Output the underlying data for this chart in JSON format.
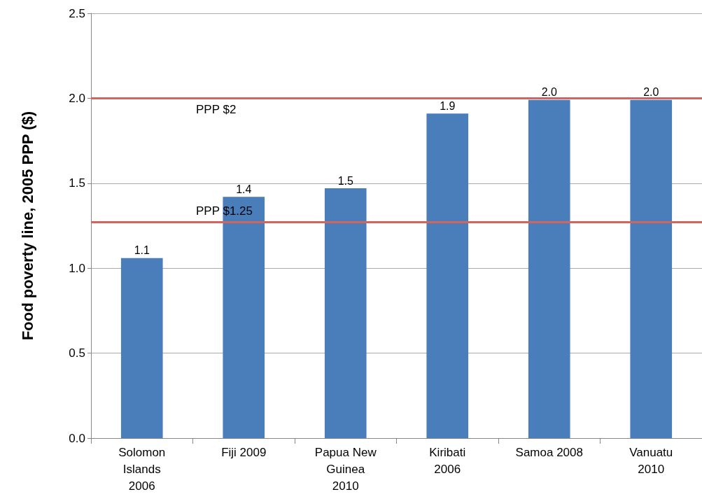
{
  "chart_data": {
    "type": "bar",
    "ylabel": "Food poverty line, 2005 PPP ($)",
    "categories": [
      "Solomon Islands 2006",
      "Fiji 2009",
      "Papua New Guinea 2010",
      "Kiribati 2006",
      "Samoa 2008",
      "Vanuatu 2010"
    ],
    "values": [
      1.06,
      1.42,
      1.47,
      1.91,
      1.99,
      1.99
    ],
    "value_labels": [
      "1.1",
      "1.4",
      "1.5",
      "1.9",
      "2.0",
      "2.0"
    ],
    "color": "#4a7ebb",
    "ylim": [
      0,
      2.5
    ],
    "yticks": [
      {
        "value": 0,
        "label": "0.0"
      },
      {
        "value": 0.5,
        "label": "0.5"
      },
      {
        "value": 1,
        "label": "1.0"
      },
      {
        "value": 1.5,
        "label": "1.5"
      },
      {
        "value": 2,
        "label": "2.0"
      },
      {
        "value": 2.5,
        "label": "2.5"
      }
    ],
    "grid": "y",
    "ref_lines": [
      {
        "axis": "y",
        "value": 2.0,
        "label": "PPP $2",
        "color": "#d0665f"
      },
      {
        "axis": "y",
        "value": 1.27,
        "label": "PPP $1.25",
        "color": "#d0665f"
      }
    ]
  }
}
